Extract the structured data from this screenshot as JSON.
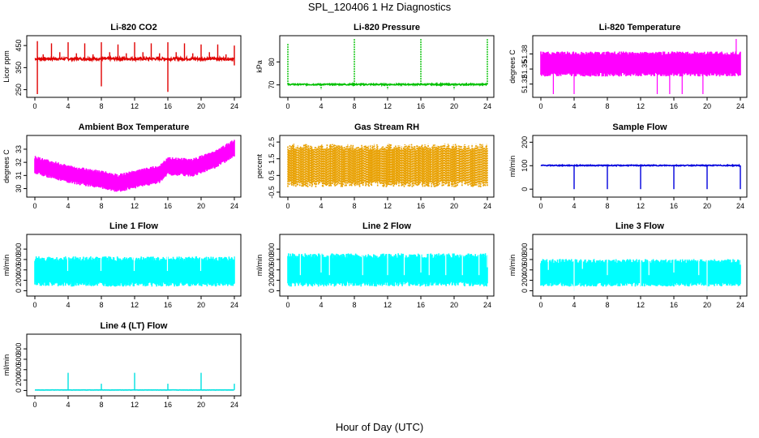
{
  "title": "SPL_120406  1 Hz Diagnostics",
  "xaxis_title": "Hour of Day (UTC)",
  "chart_data": [
    {
      "id": "co2",
      "type": "line",
      "title": "Li-820 CO2",
      "ylabel": "Licor ppm",
      "color": "#e00000",
      "xlim": [
        0,
        24
      ],
      "xticks": [
        0,
        4,
        8,
        12,
        16,
        20,
        24
      ],
      "ylim": [
        230,
        480
      ],
      "yticks": [
        250,
        350,
        450
      ],
      "pattern": {
        "kind": "flat",
        "baseline": 390,
        "noise": 6,
        "spikes": [
          [
            0.3,
            230
          ],
          [
            0.3,
            470
          ],
          [
            1,
            410
          ],
          [
            2,
            460
          ],
          [
            3,
            420
          ],
          [
            4,
            465
          ],
          [
            5,
            415
          ],
          [
            6,
            460
          ],
          [
            7,
            410
          ],
          [
            8,
            265
          ],
          [
            8,
            465
          ],
          [
            9,
            420
          ],
          [
            10,
            455
          ],
          [
            11,
            415
          ],
          [
            12,
            465
          ],
          [
            13,
            420
          ],
          [
            14,
            460
          ],
          [
            15,
            415
          ],
          [
            16,
            240
          ],
          [
            16,
            465
          ],
          [
            17,
            420
          ],
          [
            18,
            460
          ],
          [
            19,
            415
          ],
          [
            20,
            455
          ],
          [
            21,
            420
          ],
          [
            22,
            455
          ],
          [
            23,
            410
          ],
          [
            24,
            360
          ],
          [
            24,
            450
          ]
        ]
      }
    },
    {
      "id": "pressure",
      "type": "line",
      "title": "Li-820 Pressure",
      "ylabel": "kPa",
      "color": "#00c000",
      "xlim": [
        0,
        24
      ],
      "xticks": [
        0,
        4,
        8,
        12,
        16,
        20,
        24
      ],
      "ylim": [
        66,
        90
      ],
      "yticks": [
        70,
        80
      ],
      "pattern": {
        "kind": "flat",
        "baseline": 70.2,
        "noise": 0.3,
        "spikes": [
          [
            0,
            88
          ],
          [
            4,
            68
          ],
          [
            8,
            90
          ],
          [
            12,
            68
          ],
          [
            16,
            90
          ],
          [
            20,
            68
          ],
          [
            24,
            90
          ]
        ]
      }
    },
    {
      "id": "licor_temp",
      "type": "area",
      "title": "Li-820 Temperature",
      "ylabel": "degrees C",
      "color": "#ff00ff",
      "xlim": [
        0,
        24
      ],
      "xticks": [
        0,
        4,
        8,
        12,
        16,
        20,
        24
      ],
      "ylim": [
        51.3,
        51.41
      ],
      "yticks": [
        51.32,
        51.35,
        51.38
      ],
      "pattern": {
        "kind": "band",
        "low": 51.335,
        "high": 51.385,
        "spikes": [
          [
            1.5,
            51.3
          ],
          [
            4,
            51.3
          ],
          [
            9.5,
            51.37
          ],
          [
            14,
            51.3
          ],
          [
            15.5,
            51.3
          ],
          [
            17,
            51.3
          ],
          [
            19.5,
            51.3
          ],
          [
            23.5,
            51.41
          ]
        ]
      }
    },
    {
      "id": "box_temp",
      "type": "area",
      "title": "Ambient Box Temperature",
      "ylabel": "degrees C",
      "color": "#ff00ff",
      "xlim": [
        0,
        24
      ],
      "xticks": [
        0,
        4,
        8,
        12,
        16,
        20,
        24
      ],
      "ylim": [
        29.6,
        33.8
      ],
      "yticks": [
        30,
        31,
        32,
        33
      ],
      "pattern": {
        "kind": "curve",
        "center": [
          [
            0,
            31.8
          ],
          [
            4,
            31.1
          ],
          [
            8,
            30.7
          ],
          [
            10,
            30.4
          ],
          [
            12,
            30.7
          ],
          [
            15,
            31.1
          ],
          [
            16,
            31.7
          ],
          [
            19,
            31.6
          ],
          [
            22,
            32.3
          ],
          [
            24,
            33.1
          ]
        ],
        "width": 0.9
      }
    },
    {
      "id": "rh",
      "type": "area",
      "title": "Gas Stream RH",
      "ylabel": "percent",
      "color": "#e8a000",
      "xlim": [
        0,
        24
      ],
      "xticks": [
        0,
        4,
        8,
        12,
        16,
        20,
        24
      ],
      "ylim": [
        -0.6,
        2.7
      ],
      "yticks": [
        -0.5,
        0.5,
        1.5,
        2.5
      ],
      "pattern": {
        "kind": "band",
        "low": -0.2,
        "high": 2.4,
        "spikes": []
      }
    },
    {
      "id": "sample_flow",
      "type": "line",
      "title": "Sample Flow",
      "ylabel": "ml/min",
      "color": "#0000dd",
      "xlim": [
        0,
        24
      ],
      "xticks": [
        0,
        4,
        8,
        12,
        16,
        20,
        24
      ],
      "ylim": [
        -20,
        215
      ],
      "yticks": [
        0,
        100,
        200
      ],
      "pattern": {
        "kind": "flat",
        "baseline": 101,
        "noise": 2,
        "spikes": [
          [
            4,
            0
          ],
          [
            8,
            0
          ],
          [
            12,
            0
          ],
          [
            16,
            0
          ],
          [
            20,
            0
          ],
          [
            24,
            0
          ]
        ]
      }
    },
    {
      "id": "line1",
      "type": "area",
      "title": "Line 1 Flow",
      "ylabel": "ml/min",
      "color": "#00ffff",
      "xlim": [
        0,
        24
      ],
      "xticks": [
        0,
        4,
        8,
        12,
        16,
        20,
        24
      ],
      "ylim": [
        -40,
        1020
      ],
      "yticks": [
        0,
        200,
        400,
        600,
        800
      ],
      "pattern": {
        "kind": "band",
        "low": 80,
        "high": 660,
        "spikes": [
          [
            3.95,
            380
          ],
          [
            7.95,
            380
          ],
          [
            11.95,
            380
          ],
          [
            15.95,
            380
          ],
          [
            19.95,
            380
          ],
          [
            23.9,
            600
          ]
        ]
      }
    },
    {
      "id": "line2",
      "type": "area",
      "title": "Line 2 Flow",
      "ylabel": "ml/min",
      "color": "#00ffff",
      "xlim": [
        0,
        24
      ],
      "xticks": [
        0,
        4,
        8,
        12,
        16,
        20,
        24
      ],
      "ylim": [
        -40,
        1020
      ],
      "yticks": [
        0,
        200,
        400,
        600,
        800
      ],
      "pattern": {
        "kind": "band",
        "low": 80,
        "high": 720,
        "spikes": [
          [
            1.5,
            300
          ],
          [
            4,
            350
          ],
          [
            5,
            300
          ],
          [
            9,
            300
          ],
          [
            12,
            300
          ],
          [
            14,
            300
          ],
          [
            16,
            350
          ],
          [
            17,
            300
          ],
          [
            19,
            300
          ],
          [
            21,
            300
          ],
          [
            23,
            300
          ],
          [
            24,
            450
          ]
        ]
      }
    },
    {
      "id": "line3",
      "type": "area",
      "title": "Line 3 Flow",
      "ylabel": "ml/min",
      "color": "#00ffff",
      "xlim": [
        0,
        24
      ],
      "xticks": [
        0,
        4,
        8,
        12,
        16,
        20,
        24
      ],
      "ylim": [
        -40,
        1020
      ],
      "yticks": [
        0,
        200,
        400,
        600,
        800
      ],
      "pattern": {
        "kind": "band",
        "low": 80,
        "high": 610,
        "spikes": [
          [
            0.9,
            400
          ],
          [
            4,
            0
          ],
          [
            5,
            420
          ],
          [
            8,
            300
          ],
          [
            12,
            100
          ],
          [
            13,
            300
          ],
          [
            16,
            350
          ],
          [
            19,
            300
          ],
          [
            20,
            0
          ],
          [
            24,
            500
          ]
        ]
      }
    },
    {
      "id": "line4",
      "type": "line",
      "title": "Line 4 (LT) Flow",
      "ylabel": "ml/min",
      "color": "#00e0e0",
      "xlim": [
        0,
        24
      ],
      "xticks": [
        0,
        4,
        8,
        12,
        16,
        20,
        24
      ],
      "ylim": [
        -40,
        1020
      ],
      "yticks": [
        0,
        200,
        400,
        600,
        800
      ],
      "pattern": {
        "kind": "flat",
        "baseline": 10,
        "noise": 2,
        "spikes": [
          [
            4,
            340
          ],
          [
            8,
            130
          ],
          [
            12,
            340
          ],
          [
            16,
            130
          ],
          [
            20,
            340
          ],
          [
            24,
            130
          ]
        ]
      }
    }
  ]
}
